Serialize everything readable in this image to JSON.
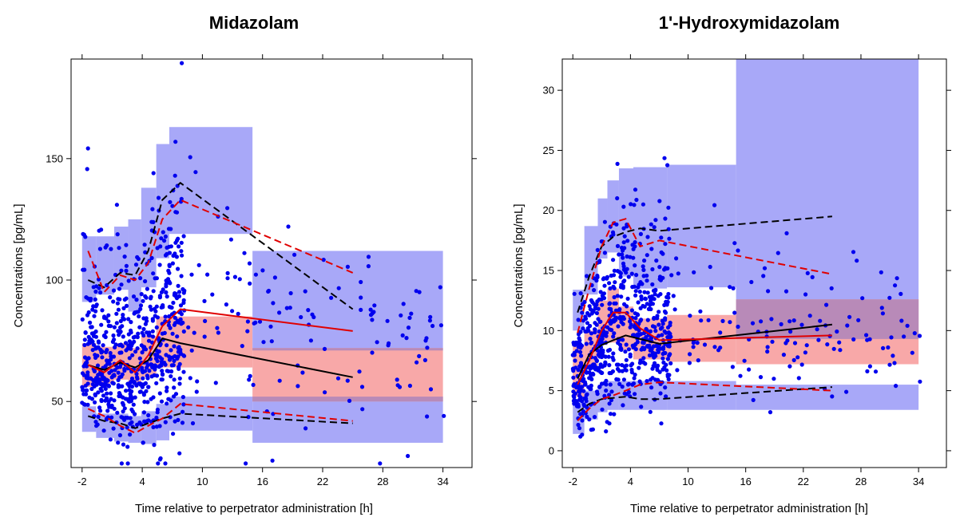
{
  "chart_data": [
    {
      "type": "scatter",
      "title": "Midazolam",
      "xlabel": "Time relative to perpetrator administration [h]",
      "ylabel": "Concentrations [pg/mL]",
      "xlim": [
        -3.1,
        36.9
      ],
      "ylim": [
        22.8,
        191
      ],
      "x_ticks": [
        -2,
        4,
        10,
        16,
        22,
        28,
        34
      ],
      "y_ticks": [
        50,
        100,
        150
      ],
      "point_color": "#0000ee",
      "observed_line_color": "#e00000",
      "predicted_line_color": "#000000",
      "outer_band_color": "#a8a8f8",
      "median_band_color": "#f8a8a8",
      "overlap_band_color": "#b88ab8",
      "bins": [
        {
          "x0": -2,
          "x1": -0.6,
          "lo": [
            37.5,
            48.0
          ],
          "mid": [
            56.0,
            74.0
          ],
          "hi": [
            91.0,
            118.0
          ]
        },
        {
          "x0": -0.6,
          "x1": 1.2,
          "lo": [
            35.0,
            45.0
          ],
          "mid": [
            57.5,
            72.5
          ],
          "hi": [
            94.0,
            118.0
          ]
        },
        {
          "x0": 1.2,
          "x1": 2.6,
          "lo": [
            33.5,
            45.0
          ],
          "mid": [
            59.0,
            74.0
          ],
          "hi": [
            96.0,
            122.0
          ]
        },
        {
          "x0": 2.6,
          "x1": 3.9,
          "lo": [
            33.0,
            44.0
          ],
          "mid": [
            58.0,
            72.0
          ],
          "hi": [
            87.0,
            125.0
          ]
        },
        {
          "x0": 3.9,
          "x1": 5.4,
          "lo": [
            32.5,
            46.0
          ],
          "mid": [
            60.0,
            77.0
          ],
          "hi": [
            97.0,
            138.0
          ]
        },
        {
          "x0": 5.4,
          "x1": 6.7,
          "lo": [
            34.0,
            49.0
          ],
          "mid": [
            64.0,
            85.0
          ],
          "hi": [
            109.0,
            156.0
          ]
        },
        {
          "x0": 6.7,
          "x1": 15.0,
          "lo": [
            38.0,
            52.0
          ],
          "mid": [
            64.0,
            85.0
          ],
          "hi": [
            119.0,
            163.0
          ]
        },
        {
          "x0": 15.0,
          "x1": 34.0,
          "lo": [
            33.0,
            52.0
          ],
          "mid": [
            50.0,
            72.0
          ],
          "hi": [
            71.0,
            112.0
          ]
        }
      ],
      "observed_median": [
        [
          -1.4,
          65
        ],
        [
          0.2,
          62
        ],
        [
          1.8,
          67
        ],
        [
          3.3,
          62
        ],
        [
          4.6,
          69
        ],
        [
          6.0,
          81
        ],
        [
          7.8,
          88
        ],
        [
          25.0,
          79
        ]
      ],
      "observed_p5": [
        [
          -1.4,
          47
        ],
        [
          0.2,
          44
        ],
        [
          1.8,
          40
        ],
        [
          3.3,
          37
        ],
        [
          4.6,
          40
        ],
        [
          6.0,
          43
        ],
        [
          7.8,
          49
        ],
        [
          25.0,
          42
        ]
      ],
      "observed_p95": [
        [
          -1.4,
          112
        ],
        [
          0.2,
          95
        ],
        [
          1.8,
          102
        ],
        [
          3.3,
          100
        ],
        [
          4.6,
          107
        ],
        [
          6.0,
          125
        ],
        [
          7.8,
          133
        ],
        [
          25.0,
          103
        ]
      ],
      "predicted_median": [
        [
          -1.4,
          65
        ],
        [
          0.2,
          63
        ],
        [
          1.8,
          66
        ],
        [
          3.3,
          64
        ],
        [
          4.6,
          67
        ],
        [
          6.0,
          76
        ],
        [
          7.8,
          74
        ],
        [
          25.0,
          60
        ]
      ],
      "predicted_p5": [
        [
          -1.4,
          44
        ],
        [
          0.2,
          42
        ],
        [
          1.8,
          41
        ],
        [
          3.3,
          39
        ],
        [
          4.6,
          41
        ],
        [
          6.0,
          43
        ],
        [
          7.8,
          45
        ],
        [
          25.0,
          41
        ]
      ],
      "predicted_p95": [
        [
          -1.4,
          100
        ],
        [
          0.2,
          97
        ],
        [
          1.8,
          103
        ],
        [
          3.3,
          102
        ],
        [
          4.6,
          112
        ],
        [
          6.0,
          133
        ],
        [
          7.8,
          140
        ],
        [
          25.0,
          88
        ]
      ]
    },
    {
      "type": "scatter",
      "title": "1'-Hydroxymidazolam",
      "xlabel": "Time relative to perpetrator administration [h]",
      "ylabel": "Concentrations [pg/mL]",
      "xlim": [
        -3.1,
        36.9
      ],
      "ylim": [
        -1.4,
        32.6
      ],
      "x_ticks": [
        -2,
        4,
        10,
        16,
        22,
        28,
        34
      ],
      "y_ticks": [
        0,
        5,
        10,
        15,
        20,
        25,
        30
      ],
      "point_color": "#0000ee",
      "observed_line_color": "#e00000",
      "predicted_line_color": "#000000",
      "outer_band_color": "#a8a8f8",
      "median_band_color": "#f8a8a8",
      "overlap_band_color": "#b88ab8",
      "bins": [
        {
          "x0": -2,
          "x1": -0.8,
          "lo": [
            1.4,
            4.0
          ],
          "mid": [
            4.5,
            8.8
          ],
          "hi": [
            10.0,
            13.4
          ]
        },
        {
          "x0": -0.8,
          "x1": 0.6,
          "lo": [
            2.6,
            5.0
          ],
          "mid": [
            7.0,
            10.0
          ],
          "hi": [
            13.0,
            18.7
          ]
        },
        {
          "x0": 0.6,
          "x1": 1.6,
          "lo": [
            3.2,
            5.5
          ],
          "mid": [
            8.8,
            12.5
          ],
          "hi": [
            16.0,
            21.0
          ]
        },
        {
          "x0": 1.6,
          "x1": 2.8,
          "lo": [
            3.4,
            5.8
          ],
          "mid": [
            9.0,
            13.5
          ],
          "hi": [
            16.5,
            22.5
          ]
        },
        {
          "x0": 2.8,
          "x1": 4.3,
          "lo": [
            3.4,
            5.8
          ],
          "mid": [
            8.4,
            12.0
          ],
          "hi": [
            14.5,
            23.5
          ]
        },
        {
          "x0": 4.3,
          "x1": 7.8,
          "lo": [
            3.4,
            5.8
          ],
          "mid": [
            7.6,
            11.0
          ],
          "hi": [
            13.5,
            23.6
          ]
        },
        {
          "x0": 7.8,
          "x1": 15.0,
          "lo": [
            3.4,
            5.8
          ],
          "mid": [
            7.4,
            11.3
          ],
          "hi": [
            13.6,
            23.8
          ]
        },
        {
          "x0": 15.0,
          "x1": 34.0,
          "lo": [
            3.4,
            5.5
          ],
          "mid": [
            7.2,
            12.6
          ],
          "hi": [
            9.3,
            32.6
          ]
        }
      ],
      "observed_median": [
        [
          -1.5,
          5.5
        ],
        [
          -0.3,
          7.5
        ],
        [
          1.0,
          10.0
        ],
        [
          2.2,
          11.5
        ],
        [
          3.5,
          11.5
        ],
        [
          5.0,
          10.2
        ],
        [
          7.0,
          9.2
        ],
        [
          25.0,
          9.6
        ]
      ],
      "observed_p5": [
        [
          -1.5,
          2.5
        ],
        [
          -0.3,
          3.5
        ],
        [
          1.0,
          4.3
        ],
        [
          2.2,
          4.6
        ],
        [
          3.5,
          5.0
        ],
        [
          5.0,
          5.5
        ],
        [
          7.0,
          5.7
        ],
        [
          25.0,
          5.0
        ]
      ],
      "observed_p95": [
        [
          -1.5,
          9.8
        ],
        [
          -0.3,
          13.5
        ],
        [
          1.0,
          17.0
        ],
        [
          2.2,
          19.0
        ],
        [
          3.5,
          19.3
        ],
        [
          5.0,
          17.0
        ],
        [
          7.0,
          17.5
        ],
        [
          25.0,
          14.7
        ]
      ],
      "predicted_median": [
        [
          -1.5,
          6.0
        ],
        [
          -0.3,
          8.0
        ],
        [
          1.0,
          8.8
        ],
        [
          2.2,
          9.2
        ],
        [
          3.5,
          9.6
        ],
        [
          5.0,
          9.3
        ],
        [
          7.0,
          8.9
        ],
        [
          25.0,
          10.5
        ]
      ],
      "predicted_p5": [
        [
          -1.5,
          3.2
        ],
        [
          -0.3,
          3.9
        ],
        [
          1.0,
          4.3
        ],
        [
          2.2,
          4.4
        ],
        [
          3.5,
          4.5
        ],
        [
          5.0,
          4.3
        ],
        [
          7.0,
          4.3
        ],
        [
          25.0,
          5.3
        ]
      ],
      "predicted_p95": [
        [
          -1.5,
          11.5
        ],
        [
          -0.3,
          14.5
        ],
        [
          1.0,
          17.0
        ],
        [
          2.2,
          17.8
        ],
        [
          3.5,
          18.2
        ],
        [
          5.0,
          18.5
        ],
        [
          7.0,
          18.3
        ],
        [
          25.0,
          19.5
        ]
      ]
    }
  ]
}
